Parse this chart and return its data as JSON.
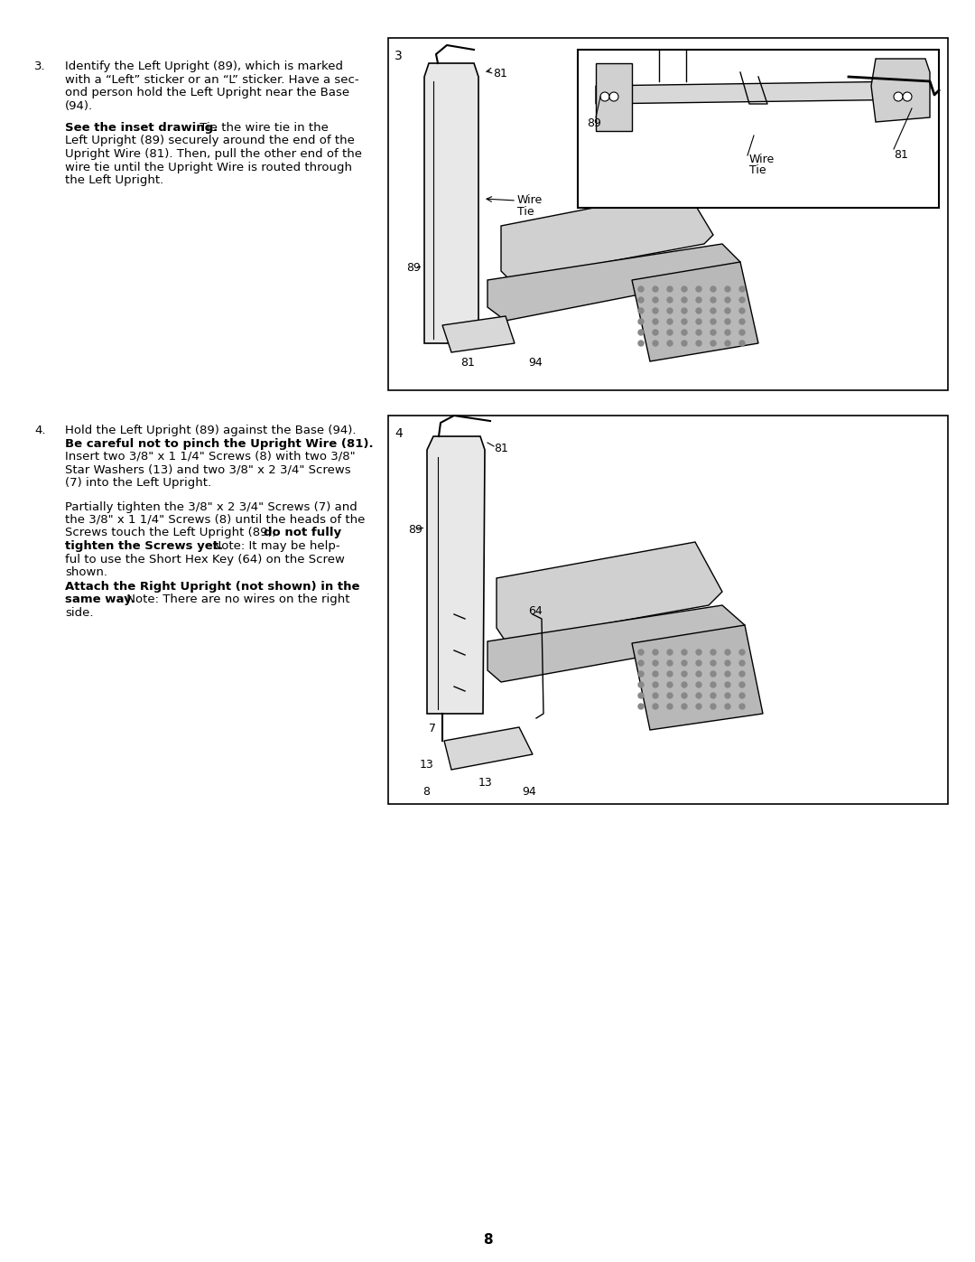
{
  "bg_color": "#ffffff",
  "page_number": "8",
  "step3": {
    "number": "3.",
    "text_lines": [
      {
        "text": "Identify the Left Upright (89), which is marked",
        "bold": false
      },
      {
        "text": "with a “Left” sticker or an “L” sticker. Have a sec-",
        "bold": false
      },
      {
        "text": "ond person hold the Left Upright near the Base",
        "bold": false
      },
      {
        "text": "(94).",
        "bold": false
      }
    ],
    "text2_lines": [
      {
        "text": "See the inset drawing.",
        "bold": true
      },
      {
        "text": " Tie the wire tie in the",
        "bold": false
      },
      {
        "text": "Left Upright (89) securely around the end of the",
        "bold": false
      },
      {
        "text": "Upright Wire (81). Then, pull the other end of the",
        "bold": false
      },
      {
        "text": "wire tie until the Upright Wire is routed through",
        "bold": false
      },
      {
        "text": "the Left Upright.",
        "bold": false
      }
    ]
  },
  "step4": {
    "number": "4.",
    "text_lines": [
      {
        "text": "Hold the Left Upright (89) against the Base (94).",
        "bold": false
      },
      {
        "text": "Be careful not to pinch the Upright Wire (81).",
        "bold": true
      },
      {
        "text": "Insert two 3/8\" x 1 1/4\" Screws (8) with two 3/8\"",
        "bold": false
      },
      {
        "text": "Star Washers (13) and two 3/8\" x 2 3/4\" Screws",
        "bold": false
      },
      {
        "text": "(7) into the Left Upright.",
        "bold": false
      }
    ],
    "text2_lines": [
      {
        "text": "Partially tighten the 3/8\" x 2 3/4\" Screws (7) and",
        "bold": false
      },
      {
        "text": "the 3/8\" x 1 1/4\" Screws (8) until the heads of the",
        "bold": false
      },
      {
        "text": "Screws touch the Left Upright (89); ",
        "bold": false
      },
      {
        "text": "do not fully",
        "bold": true
      },
      {
        "text": "tighten the Screws yet.",
        "bold": true
      },
      {
        "text": "  Note: It may be help-",
        "bold": false
      },
      {
        "text": "ful to use the Short Hex Key (64) on the Screw",
        "bold": false
      },
      {
        "text": "shown.",
        "bold": false
      }
    ],
    "text3_lines": [
      {
        "text": "Attach the Right Upright (not shown) in the",
        "bold": true
      },
      {
        "text": "same way.",
        "bold": true
      },
      {
        "text": " Note: There are no wires on the right",
        "bold": false
      },
      {
        "text": "side.",
        "bold": false
      }
    ]
  },
  "font_size_body": 9.5,
  "font_size_page_num": 11,
  "line_color": "#000000",
  "diagram_border_color": "#000000"
}
